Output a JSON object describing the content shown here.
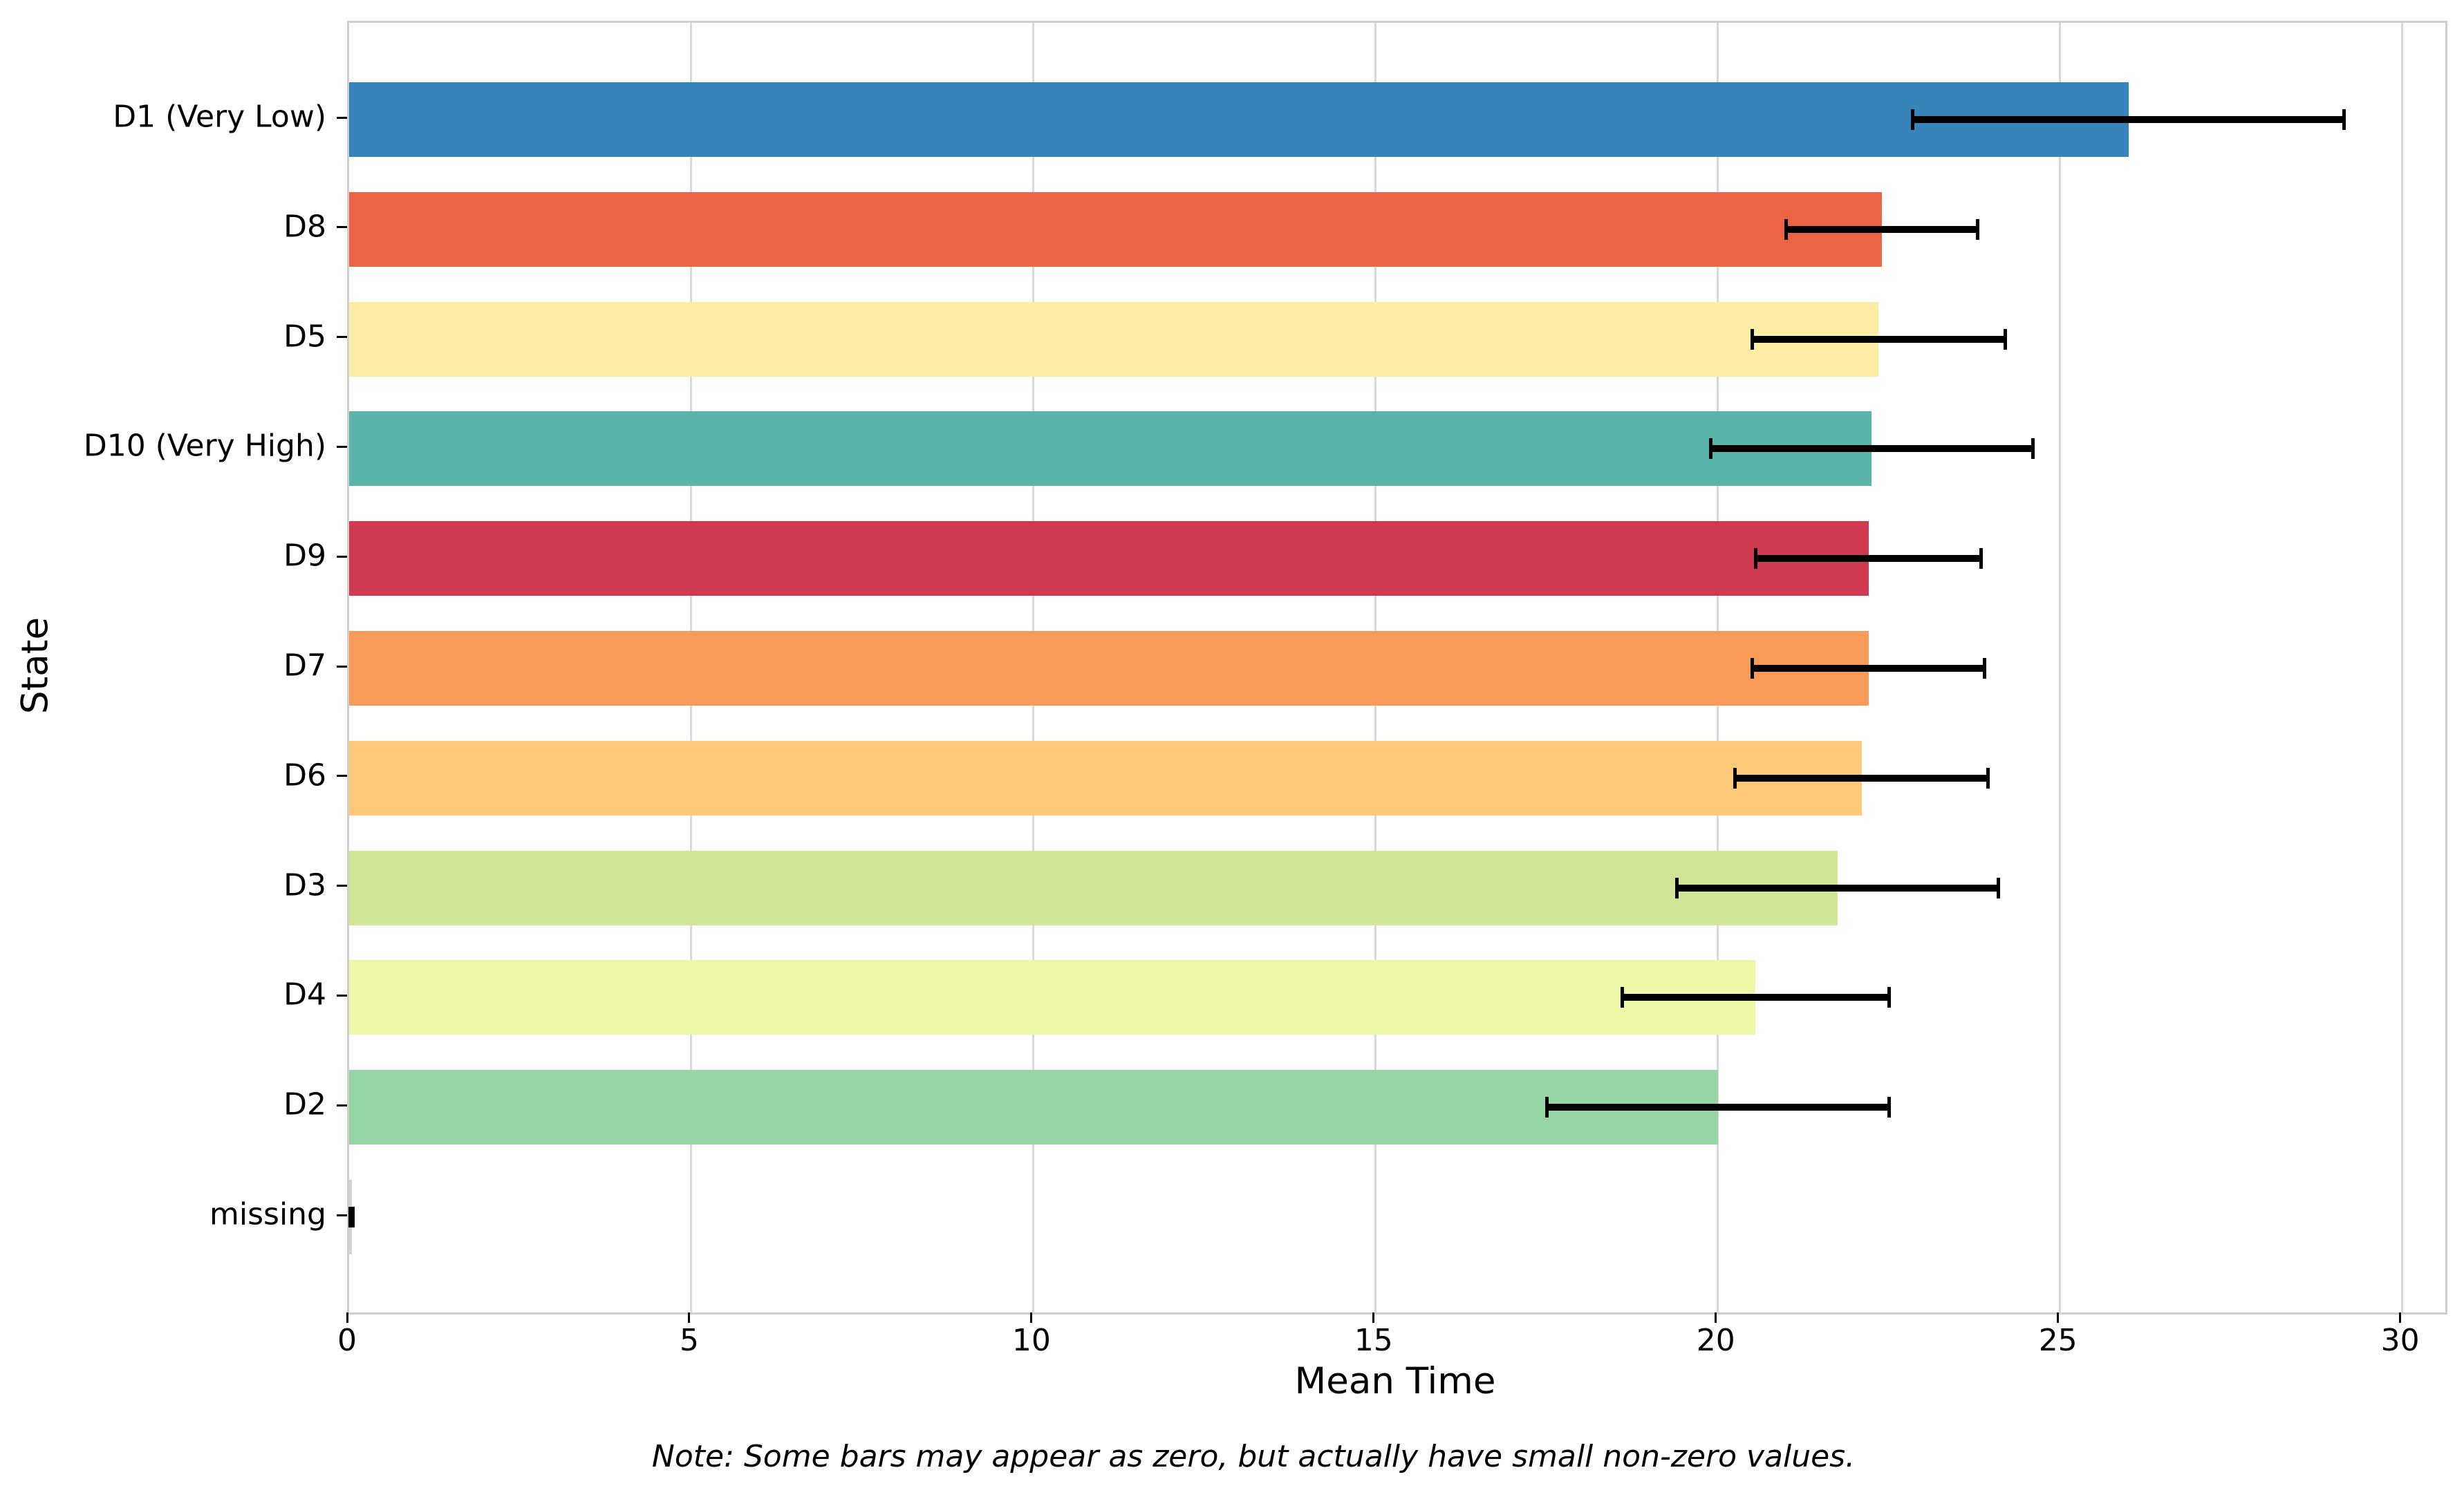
{
  "chart_data": {
    "type": "bar",
    "orientation": "horizontal",
    "title": "",
    "xlabel": "Mean Time",
    "ylabel": "State",
    "note": "Note: Some bars may appear as zero, but actually have small non-zero values.",
    "xlim": [
      0,
      30.63
    ],
    "x_ticks": [
      0,
      5,
      10,
      15,
      20,
      25,
      30
    ],
    "grid": "vertical-only",
    "legend": "none",
    "categories": [
      "D1 (Very Low)",
      "D8",
      "D5",
      "D10 (Very High)",
      "D9",
      "D7",
      "D6",
      "D3",
      "D4",
      "D2",
      "missing"
    ],
    "series": [
      {
        "name": "Mean Time",
        "values": [
          26.0,
          22.4,
          22.35,
          22.25,
          22.2,
          22.2,
          22.1,
          21.75,
          20.55,
          20.0,
          0.04
        ],
        "errors": [
          3.15,
          1.4,
          1.85,
          2.35,
          1.65,
          1.7,
          1.85,
          2.35,
          1.95,
          2.5,
          0.02
        ]
      }
    ],
    "bar_colors": [
      "#3784bb",
      "#ed6345",
      "#fdeca4",
      "#5bb4ab",
      "#d03a50",
      "#f89b59",
      "#fdc978",
      "#cfe797",
      "#eff8a6",
      "#96d5a4",
      "#d3d3d3"
    ],
    "style_colors": {
      "error_bar": "#000000",
      "gridline": "#d9d9d9",
      "spine": "#cfcfcf",
      "tick": "#000000",
      "text": "#000000",
      "background": "#ffffff"
    }
  }
}
